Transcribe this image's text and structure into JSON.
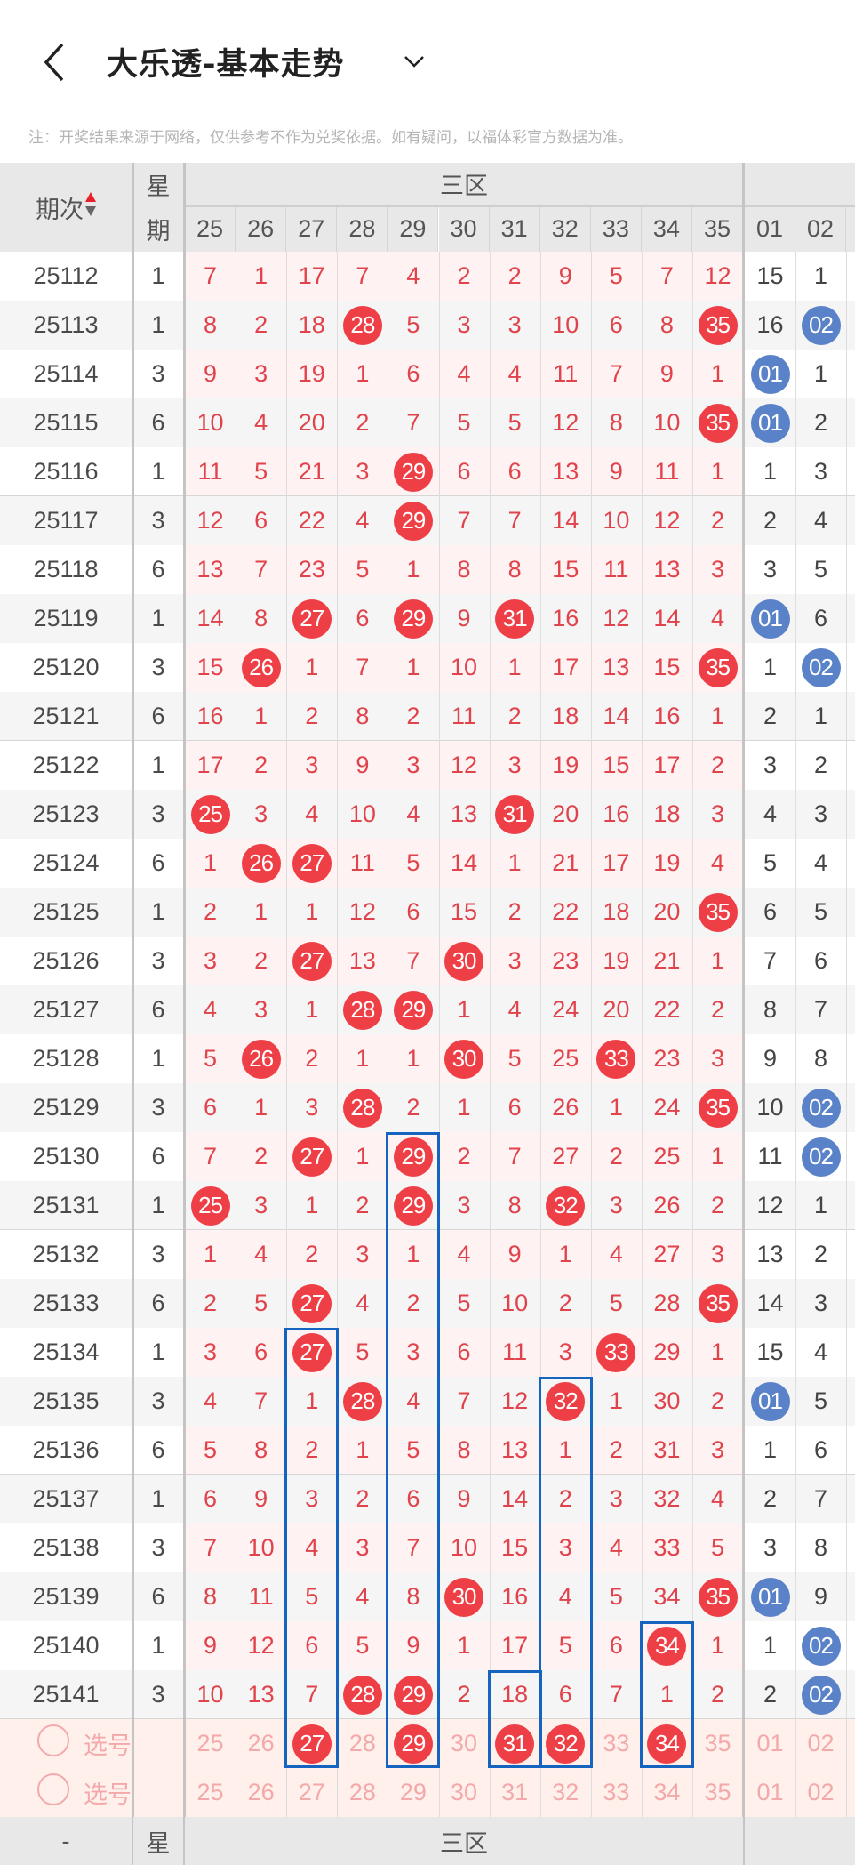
{
  "header": {
    "title": "大乐透-基本走势",
    "back_icon": "chevron-left-icon",
    "dropdown_icon": "chevron-down-icon"
  },
  "note": "注：开奖结果来源于网络，仅供参考不作为兑奖依据。如有疑问，以福体彩官方数据为准。",
  "table": {
    "period_header": "期次",
    "weekday_header_top": "星",
    "weekday_header_bottom": "期",
    "zone_header": "三区",
    "front_columns": [
      "25",
      "26",
      "27",
      "28",
      "29",
      "30",
      "31",
      "32",
      "33",
      "34",
      "35"
    ],
    "back_columns": [
      "01",
      "02"
    ],
    "rows": [
      {
        "period": "25112",
        "weekday": "1",
        "front": [
          "7",
          "1",
          "17",
          "7",
          "4",
          "2",
          "2",
          "9",
          "5",
          "7",
          "12"
        ],
        "back": [
          "15",
          "1"
        ],
        "hits": [],
        "back_hits": []
      },
      {
        "period": "25113",
        "weekday": "1",
        "front": [
          "8",
          "2",
          "18",
          "28",
          "5",
          "3",
          "3",
          "10",
          "6",
          "8",
          "35"
        ],
        "back": [
          "16",
          "02"
        ],
        "hits": [
          "28",
          "35"
        ],
        "back_hits": [
          "02"
        ]
      },
      {
        "period": "25114",
        "weekday": "3",
        "front": [
          "9",
          "3",
          "19",
          "1",
          "6",
          "4",
          "4",
          "11",
          "7",
          "9",
          "1"
        ],
        "back": [
          "01",
          "1"
        ],
        "hits": [],
        "back_hits": [
          "01"
        ]
      },
      {
        "period": "25115",
        "weekday": "6",
        "front": [
          "10",
          "4",
          "20",
          "2",
          "7",
          "5",
          "5",
          "12",
          "8",
          "10",
          "35"
        ],
        "back": [
          "01",
          "2"
        ],
        "hits": [
          "35"
        ],
        "back_hits": [
          "01"
        ]
      },
      {
        "period": "25116",
        "weekday": "1",
        "front": [
          "11",
          "5",
          "21",
          "3",
          "29",
          "6",
          "6",
          "13",
          "9",
          "11",
          "1"
        ],
        "back": [
          "1",
          "3"
        ],
        "hits": [
          "29"
        ],
        "back_hits": []
      },
      {
        "period": "25117",
        "weekday": "3",
        "front": [
          "12",
          "6",
          "22",
          "4",
          "29",
          "7",
          "7",
          "14",
          "10",
          "12",
          "2"
        ],
        "back": [
          "2",
          "4"
        ],
        "hits": [
          "29"
        ],
        "back_hits": []
      },
      {
        "period": "25118",
        "weekday": "6",
        "front": [
          "13",
          "7",
          "23",
          "5",
          "1",
          "8",
          "8",
          "15",
          "11",
          "13",
          "3"
        ],
        "back": [
          "3",
          "5"
        ],
        "hits": [],
        "back_hits": []
      },
      {
        "period": "25119",
        "weekday": "1",
        "front": [
          "14",
          "8",
          "27",
          "6",
          "29",
          "9",
          "31",
          "16",
          "12",
          "14",
          "4"
        ],
        "back": [
          "01",
          "6"
        ],
        "hits": [
          "27",
          "29",
          "31"
        ],
        "back_hits": [
          "01"
        ]
      },
      {
        "period": "25120",
        "weekday": "3",
        "front": [
          "15",
          "26",
          "1",
          "7",
          "1",
          "10",
          "1",
          "17",
          "13",
          "15",
          "35"
        ],
        "back": [
          "1",
          "02"
        ],
        "hits": [
          "26",
          "35"
        ],
        "back_hits": [
          "02"
        ]
      },
      {
        "period": "25121",
        "weekday": "6",
        "front": [
          "16",
          "1",
          "2",
          "8",
          "2",
          "11",
          "2",
          "18",
          "14",
          "16",
          "1"
        ],
        "back": [
          "2",
          "1"
        ],
        "hits": [],
        "back_hits": []
      },
      {
        "period": "25122",
        "weekday": "1",
        "front": [
          "17",
          "2",
          "3",
          "9",
          "3",
          "12",
          "3",
          "19",
          "15",
          "17",
          "2"
        ],
        "back": [
          "3",
          "2"
        ],
        "hits": [],
        "back_hits": []
      },
      {
        "period": "25123",
        "weekday": "3",
        "front": [
          "25",
          "3",
          "4",
          "10",
          "4",
          "13",
          "31",
          "20",
          "16",
          "18",
          "3"
        ],
        "back": [
          "4",
          "3"
        ],
        "hits": [
          "25",
          "31"
        ],
        "back_hits": []
      },
      {
        "period": "25124",
        "weekday": "6",
        "front": [
          "1",
          "26",
          "27",
          "11",
          "5",
          "14",
          "1",
          "21",
          "17",
          "19",
          "4"
        ],
        "back": [
          "5",
          "4"
        ],
        "hits": [
          "26",
          "27"
        ],
        "back_hits": []
      },
      {
        "period": "25125",
        "weekday": "1",
        "front": [
          "2",
          "1",
          "1",
          "12",
          "6",
          "15",
          "2",
          "22",
          "18",
          "20",
          "35"
        ],
        "back": [
          "6",
          "5"
        ],
        "hits": [
          "35"
        ],
        "back_hits": []
      },
      {
        "period": "25126",
        "weekday": "3",
        "front": [
          "3",
          "2",
          "27",
          "13",
          "7",
          "30",
          "3",
          "23",
          "19",
          "21",
          "1"
        ],
        "back": [
          "7",
          "6"
        ],
        "hits": [
          "27",
          "30"
        ],
        "back_hits": []
      },
      {
        "period": "25127",
        "weekday": "6",
        "front": [
          "4",
          "3",
          "1",
          "28",
          "29",
          "1",
          "4",
          "24",
          "20",
          "22",
          "2"
        ],
        "back": [
          "8",
          "7"
        ],
        "hits": [
          "28",
          "29"
        ],
        "back_hits": []
      },
      {
        "period": "25128",
        "weekday": "1",
        "front": [
          "5",
          "26",
          "2",
          "1",
          "1",
          "30",
          "5",
          "25",
          "33",
          "23",
          "3"
        ],
        "back": [
          "9",
          "8"
        ],
        "hits": [
          "26",
          "30",
          "33"
        ],
        "back_hits": []
      },
      {
        "period": "25129",
        "weekday": "3",
        "front": [
          "6",
          "1",
          "3",
          "28",
          "2",
          "1",
          "6",
          "26",
          "1",
          "24",
          "35"
        ],
        "back": [
          "10",
          "02"
        ],
        "hits": [
          "28",
          "35"
        ],
        "back_hits": [
          "02"
        ]
      },
      {
        "period": "25130",
        "weekday": "6",
        "front": [
          "7",
          "2",
          "27",
          "1",
          "29",
          "2",
          "7",
          "27",
          "2",
          "25",
          "1"
        ],
        "back": [
          "11",
          "02"
        ],
        "hits": [
          "27",
          "29"
        ],
        "back_hits": [
          "02"
        ]
      },
      {
        "period": "25131",
        "weekday": "1",
        "front": [
          "25",
          "3",
          "1",
          "2",
          "29",
          "3",
          "8",
          "32",
          "3",
          "26",
          "2"
        ],
        "back": [
          "12",
          "1"
        ],
        "hits": [
          "25",
          "29",
          "32"
        ],
        "back_hits": []
      },
      {
        "period": "25132",
        "weekday": "3",
        "front": [
          "1",
          "4",
          "2",
          "3",
          "1",
          "4",
          "9",
          "1",
          "4",
          "27",
          "3"
        ],
        "back": [
          "13",
          "2"
        ],
        "hits": [],
        "back_hits": []
      },
      {
        "period": "25133",
        "weekday": "6",
        "front": [
          "2",
          "5",
          "27",
          "4",
          "2",
          "5",
          "10",
          "2",
          "5",
          "28",
          "35"
        ],
        "back": [
          "14",
          "3"
        ],
        "hits": [
          "27",
          "35"
        ],
        "back_hits": []
      },
      {
        "period": "25134",
        "weekday": "1",
        "front": [
          "3",
          "6",
          "27",
          "5",
          "3",
          "6",
          "11",
          "3",
          "33",
          "29",
          "1"
        ],
        "back": [
          "15",
          "4"
        ],
        "hits": [
          "27",
          "33"
        ],
        "back_hits": []
      },
      {
        "period": "25135",
        "weekday": "3",
        "front": [
          "4",
          "7",
          "1",
          "28",
          "4",
          "7",
          "12",
          "32",
          "1",
          "30",
          "2"
        ],
        "back": [
          "01",
          "5"
        ],
        "hits": [
          "28",
          "32"
        ],
        "back_hits": [
          "01"
        ]
      },
      {
        "period": "25136",
        "weekday": "6",
        "front": [
          "5",
          "8",
          "2",
          "1",
          "5",
          "8",
          "13",
          "1",
          "2",
          "31",
          "3"
        ],
        "back": [
          "1",
          "6"
        ],
        "hits": [],
        "back_hits": []
      },
      {
        "period": "25137",
        "weekday": "1",
        "front": [
          "6",
          "9",
          "3",
          "2",
          "6",
          "9",
          "14",
          "2",
          "3",
          "32",
          "4"
        ],
        "back": [
          "2",
          "7"
        ],
        "hits": [],
        "back_hits": []
      },
      {
        "period": "25138",
        "weekday": "3",
        "front": [
          "7",
          "10",
          "4",
          "3",
          "7",
          "10",
          "15",
          "3",
          "4",
          "33",
          "5"
        ],
        "back": [
          "3",
          "8"
        ],
        "hits": [],
        "back_hits": []
      },
      {
        "period": "25139",
        "weekday": "6",
        "front": [
          "8",
          "11",
          "5",
          "4",
          "8",
          "30",
          "16",
          "4",
          "5",
          "34",
          "35"
        ],
        "back": [
          "01",
          "9"
        ],
        "hits": [
          "30",
          "35"
        ],
        "back_hits": [
          "01"
        ]
      },
      {
        "period": "25140",
        "weekday": "1",
        "front": [
          "9",
          "12",
          "6",
          "5",
          "9",
          "1",
          "17",
          "5",
          "6",
          "34",
          "1"
        ],
        "back": [
          "1",
          "02"
        ],
        "hits": [
          "34"
        ],
        "back_hits": [
          "02"
        ]
      },
      {
        "period": "25141",
        "weekday": "3",
        "front": [
          "10",
          "13",
          "7",
          "28",
          "29",
          "2",
          "18",
          "6",
          "7",
          "1",
          "2"
        ],
        "back": [
          "2",
          "02"
        ],
        "hits": [
          "28",
          "29"
        ],
        "back_hits": [
          "02"
        ]
      }
    ],
    "select_rows": [
      {
        "label": "选号",
        "icon": "radio-circle-icon",
        "selected": [
          "27",
          "29",
          "31",
          "32",
          "34"
        ]
      },
      {
        "label": "选号",
        "icon": "radio-circle-icon",
        "selected": []
      }
    ],
    "highlight_boxes": [
      {
        "column": "27",
        "from_period": "25134",
        "to": "选号"
      },
      {
        "column": "29",
        "from_period": "25130",
        "to": "选号"
      },
      {
        "column": "31",
        "from_period": "25141",
        "to": "选号"
      },
      {
        "column": "32",
        "from_period": "25135",
        "to": "选号"
      },
      {
        "column": "34",
        "from_period": "25140",
        "to": "选号"
      }
    ],
    "footer_header": {
      "period": "-",
      "weekday": "星",
      "zone": "三区"
    }
  },
  "colors": {
    "front_ball": "#ee3f46",
    "back_ball": "#5a82c8",
    "highlight_box": "#1565c0",
    "omission_text": "#e0434b",
    "sort_up": "#e8202a"
  }
}
